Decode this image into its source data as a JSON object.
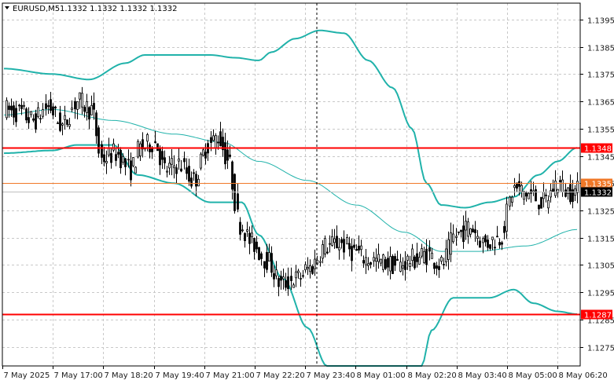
{
  "header": {
    "symbol": "EURUSD,M5",
    "ohlc": "1.1332 1.1332 1.1332 1.1332"
  },
  "chart_data": {
    "type": "candlestick",
    "title": "EURUSD,M5",
    "ylim": [
      1.1268,
      1.1401
    ],
    "y_ticks": [
      "1.1395",
      "1.1385",
      "1.1375",
      "1.1365",
      "1.1355",
      "1.1345",
      "1.1335",
      "1.1325",
      "1.1315",
      "1.1305",
      "1.1295",
      "1.1285",
      "1.1275"
    ],
    "x_ticks": [
      "7 May 2025",
      "7 May 17:00",
      "7 May 18:20",
      "7 May 19:40",
      "7 May 21:00",
      "7 May 22:20",
      "7 May 23:40",
      "8 May 01:00",
      "8 May 02:20",
      "8 May 03:40",
      "8 May 05:00",
      "8 May 06:20"
    ],
    "grid": true,
    "current_price": "1.1332",
    "horizontal_levels": [
      {
        "label": "1.1348",
        "value": 1.1348,
        "color": "#ff0000"
      },
      {
        "label": "1.1335",
        "value": 1.1335,
        "color": "#f07828"
      },
      {
        "label": "1.1287",
        "value": 1.1287,
        "color": "#ff0000"
      }
    ],
    "close_series": [
      {
        "i": 0,
        "c": 1.1362
      },
      {
        "i": 6,
        "c": 1.1361
      },
      {
        "i": 12,
        "c": 1.1358
      },
      {
        "i": 18,
        "c": 1.1363
      },
      {
        "i": 24,
        "c": 1.1356
      },
      {
        "i": 30,
        "c": 1.1365
      },
      {
        "i": 36,
        "c": 1.1362
      },
      {
        "i": 40,
        "c": 1.1344
      },
      {
        "i": 46,
        "c": 1.1346
      },
      {
        "i": 52,
        "c": 1.134
      },
      {
        "i": 56,
        "c": 1.1348
      },
      {
        "i": 62,
        "c": 1.135
      },
      {
        "i": 66,
        "c": 1.134
      },
      {
        "i": 72,
        "c": 1.1342
      },
      {
        "i": 78,
        "c": 1.1336
      },
      {
        "i": 84,
        "c": 1.1349
      },
      {
        "i": 88,
        "c": 1.1352
      },
      {
        "i": 92,
        "c": 1.1344
      },
      {
        "i": 97,
        "c": 1.132
      },
      {
        "i": 102,
        "c": 1.1313
      },
      {
        "i": 108,
        "c": 1.1307
      },
      {
        "i": 114,
        "c": 1.1298
      },
      {
        "i": 120,
        "c": 1.13
      },
      {
        "i": 126,
        "c": 1.1304
      },
      {
        "i": 132,
        "c": 1.1312
      },
      {
        "i": 138,
        "c": 1.1313
      },
      {
        "i": 144,
        "c": 1.131
      },
      {
        "i": 150,
        "c": 1.1307
      },
      {
        "i": 156,
        "c": 1.1306
      },
      {
        "i": 162,
        "c": 1.1305
      },
      {
        "i": 168,
        "c": 1.1307
      },
      {
        "i": 174,
        "c": 1.1309
      },
      {
        "i": 180,
        "c": 1.1305
      },
      {
        "i": 186,
        "c": 1.1316
      },
      {
        "i": 192,
        "c": 1.1319
      },
      {
        "i": 198,
        "c": 1.1313
      },
      {
        "i": 204,
        "c": 1.1315
      },
      {
        "i": 210,
        "c": 1.1333
      },
      {
        "i": 216,
        "c": 1.1331
      },
      {
        "i": 222,
        "c": 1.1328
      },
      {
        "i": 228,
        "c": 1.1335
      },
      {
        "i": 232,
        "c": 1.1332
      }
    ],
    "bollinger_upper": [
      {
        "i": 0,
        "v": 1.1377
      },
      {
        "i": 20,
        "v": 1.1375
      },
      {
        "i": 35,
        "v": 1.1373
      },
      {
        "i": 50,
        "v": 1.1379
      },
      {
        "i": 58,
        "v": 1.1382
      },
      {
        "i": 70,
        "v": 1.1382
      },
      {
        "i": 85,
        "v": 1.1382
      },
      {
        "i": 95,
        "v": 1.1381
      },
      {
        "i": 105,
        "v": 1.138
      },
      {
        "i": 110,
        "v": 1.1383
      },
      {
        "i": 120,
        "v": 1.1388
      },
      {
        "i": 130,
        "v": 1.1391
      },
      {
        "i": 140,
        "v": 1.139
      },
      {
        "i": 150,
        "v": 1.138
      },
      {
        "i": 160,
        "v": 1.137
      },
      {
        "i": 168,
        "v": 1.1355
      },
      {
        "i": 174,
        "v": 1.1335
      },
      {
        "i": 180,
        "v": 1.1327
      },
      {
        "i": 190,
        "v": 1.1326
      },
      {
        "i": 200,
        "v": 1.1328
      },
      {
        "i": 210,
        "v": 1.133
      },
      {
        "i": 220,
        "v": 1.1338
      },
      {
        "i": 228,
        "v": 1.1343
      },
      {
        "i": 236,
        "v": 1.1348
      }
    ],
    "bollinger_middle": [
      {
        "i": 0,
        "v": 1.136
      },
      {
        "i": 20,
        "v": 1.1362
      },
      {
        "i": 45,
        "v": 1.1358
      },
      {
        "i": 70,
        "v": 1.1353
      },
      {
        "i": 90,
        "v": 1.135
      },
      {
        "i": 105,
        "v": 1.1343
      },
      {
        "i": 125,
        "v": 1.1336
      },
      {
        "i": 145,
        "v": 1.1327
      },
      {
        "i": 165,
        "v": 1.1317
      },
      {
        "i": 180,
        "v": 1.131
      },
      {
        "i": 195,
        "v": 1.131
      },
      {
        "i": 215,
        "v": 1.1312
      },
      {
        "i": 236,
        "v": 1.1318
      }
    ],
    "bollinger_lower": [
      {
        "i": 0,
        "v": 1.1346
      },
      {
        "i": 20,
        "v": 1.1347
      },
      {
        "i": 30,
        "v": 1.1349
      },
      {
        "i": 45,
        "v": 1.1349
      },
      {
        "i": 55,
        "v": 1.1338
      },
      {
        "i": 70,
        "v": 1.1335
      },
      {
        "i": 85,
        "v": 1.1328
      },
      {
        "i": 98,
        "v": 1.1328
      },
      {
        "i": 105,
        "v": 1.1316
      },
      {
        "i": 115,
        "v": 1.13
      },
      {
        "i": 125,
        "v": 1.1282
      },
      {
        "i": 133,
        "v": 1.1268
      },
      {
        "i": 172,
        "v": 1.1268
      },
      {
        "i": 176,
        "v": 1.1281
      },
      {
        "i": 185,
        "v": 1.1293
      },
      {
        "i": 200,
        "v": 1.1293
      },
      {
        "i": 210,
        "v": 1.1296
      },
      {
        "i": 218,
        "v": 1.1291
      },
      {
        "i": 228,
        "v": 1.1288
      },
      {
        "i": 236,
        "v": 1.1287
      }
    ]
  }
}
